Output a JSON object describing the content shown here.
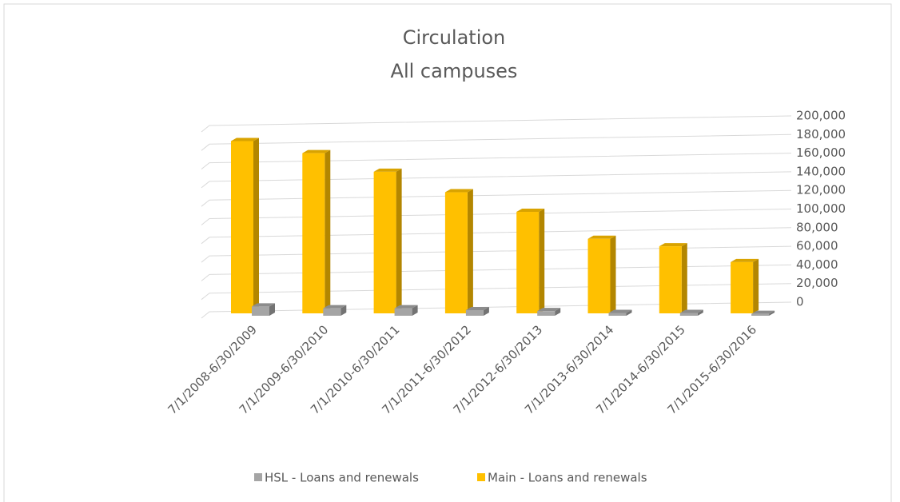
{
  "chart_data": {
    "type": "bar",
    "title": "Circulation",
    "subtitle": "All campuses",
    "categories": [
      "7/1/2008-6/30/2009",
      "7/1/2009-6/30/2010",
      "7/1/2010-6/30/2011",
      "7/1/2011-6/30/2012",
      "7/1/2012-6/30/2013",
      "7/1/2013-6/30/2014",
      "7/1/2014-6/30/2015",
      "7/1/2015-6/30/2016"
    ],
    "series": [
      {
        "name": "HSL - Loans and renewals",
        "color": "#a5a5a5",
        "values": [
          10000,
          8000,
          8000,
          6000,
          5000,
          3000,
          3000,
          2000
        ]
      },
      {
        "name": "Main - Loans and renewals",
        "color": "#ffc000",
        "values": [
          185000,
          172000,
          152000,
          130000,
          109000,
          80000,
          72000,
          55000
        ]
      }
    ],
    "ylim": [
      0,
      200000
    ],
    "yticks": [
      0,
      {
        "value": 20000,
        "label": "20,000"
      },
      {
        "value": 40000,
        "label": "40,000"
      },
      {
        "value": 60000,
        "label": "60,000"
      },
      {
        "value": 80000,
        "label": "80,000"
      },
      {
        "value": 100000,
        "label": "100,000"
      },
      {
        "value": 120000,
        "label": "120,000"
      },
      {
        "value": 140000,
        "label": "140,000"
      },
      {
        "value": 160000,
        "label": "160,000"
      },
      {
        "value": 180000,
        "label": "180,000"
      },
      {
        "value": 200000,
        "label": "200,000"
      }
    ],
    "grid": true,
    "legend": "bottom"
  }
}
